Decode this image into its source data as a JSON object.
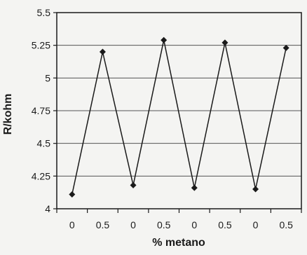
{
  "chart_data": {
    "type": "line",
    "title": "",
    "xlabel": "% metano",
    "ylabel": "R/kohm",
    "categories": [
      "0",
      "0.5",
      "0",
      "0.5",
      "0",
      "0.5",
      "0",
      "0.5"
    ],
    "series": [
      {
        "values": [
          4.11,
          5.2,
          4.18,
          5.29,
          4.16,
          5.27,
          4.15,
          5.23
        ]
      }
    ],
    "ylim": [
      4,
      5.5
    ],
    "yticks": [
      4,
      4.25,
      4.5,
      4.75,
      5,
      5.25,
      5.5
    ],
    "ytick_labels": [
      "4",
      "4.25",
      "4.5",
      "4.75",
      "5",
      "5.25",
      "5.5"
    ],
    "grid": true,
    "legend": "none",
    "colors": {
      "line": "#1a1a1a",
      "marker": "#1a1a1a",
      "grid": "#555555",
      "frame": "#1a1a1a"
    }
  }
}
